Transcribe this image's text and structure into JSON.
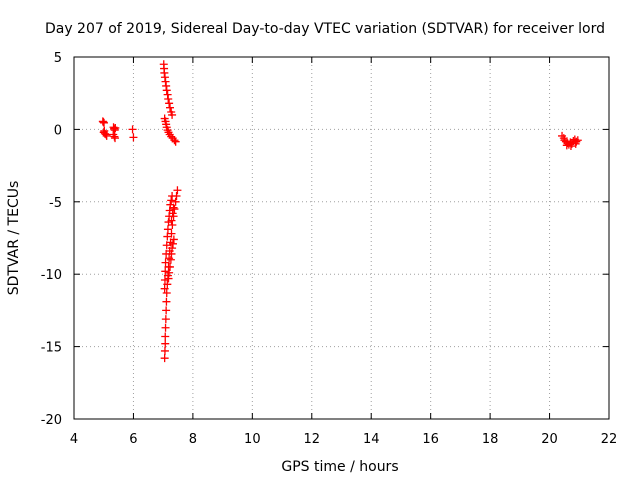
{
  "chart_data": {
    "type": "scatter",
    "title": "Day 207 of 2019, Sidereal Day-to-day VTEC variation (SDTVAR) for receiver lord",
    "xlabel": "GPS time / hours",
    "ylabel": "SDTVAR / TECUs",
    "xlim": [
      4,
      22
    ],
    "ylim": [
      -20,
      5
    ],
    "xticks": [
      4,
      6,
      8,
      10,
      12,
      14,
      16,
      18,
      20,
      22
    ],
    "yticks": [
      5,
      0,
      -5,
      -10,
      -15,
      -20
    ],
    "xtick_labels": [
      "4",
      "6",
      "8",
      "10",
      "12",
      "14",
      "16",
      "18",
      "20",
      "22"
    ],
    "ytick_labels": [
      "5",
      "0",
      "-5",
      "-10",
      "-15",
      "-20"
    ],
    "grid": true,
    "marker": "+",
    "marker_color": "#ff0000",
    "series": [
      {
        "name": "SDTVAR",
        "points": [
          [
            4.97,
            0.55
          ],
          [
            4.99,
            0.5
          ],
          [
            5.01,
            0.45
          ],
          [
            5.02,
            -0.1
          ],
          [
            5.0,
            -0.2
          ],
          [
            5.04,
            -0.3
          ],
          [
            5.08,
            -0.35
          ],
          [
            5.1,
            -0.45
          ],
          [
            5.33,
            0.15
          ],
          [
            5.35,
            0.05
          ],
          [
            5.37,
            -0.05
          ],
          [
            5.39,
            0.1
          ],
          [
            5.32,
            -0.35
          ],
          [
            5.36,
            -0.5
          ],
          [
            5.38,
            -0.6
          ],
          [
            5.97,
            0.0
          ],
          [
            6.0,
            -0.55
          ],
          [
            7.02,
            4.5
          ],
          [
            7.03,
            4.2
          ],
          [
            7.04,
            3.9
          ],
          [
            7.06,
            3.6
          ],
          [
            7.08,
            3.3
          ],
          [
            7.1,
            3.0
          ],
          [
            7.12,
            2.7
          ],
          [
            7.15,
            2.4
          ],
          [
            7.17,
            2.1
          ],
          [
            7.2,
            1.8
          ],
          [
            7.23,
            1.5
          ],
          [
            7.27,
            1.2
          ],
          [
            7.3,
            1.0
          ],
          [
            7.05,
            0.75
          ],
          [
            7.08,
            0.55
          ],
          [
            7.1,
            0.35
          ],
          [
            7.12,
            0.15
          ],
          [
            7.15,
            -0.05
          ],
          [
            7.18,
            -0.2
          ],
          [
            7.22,
            -0.35
          ],
          [
            7.27,
            -0.5
          ],
          [
            7.32,
            -0.6
          ],
          [
            7.38,
            -0.75
          ],
          [
            7.42,
            -0.85
          ],
          [
            7.05,
            -15.8
          ],
          [
            7.06,
            -15.3
          ],
          [
            7.07,
            -14.8
          ],
          [
            7.07,
            -14.3
          ],
          [
            7.08,
            -13.7
          ],
          [
            7.09,
            -13.1
          ],
          [
            7.1,
            -12.5
          ],
          [
            7.11,
            -11.9
          ],
          [
            7.12,
            -11.3
          ],
          [
            7.14,
            -10.7
          ],
          [
            7.16,
            -10.1
          ],
          [
            7.18,
            -9.5
          ],
          [
            7.2,
            -8.9
          ],
          [
            7.22,
            -8.4
          ],
          [
            7.25,
            -7.8
          ],
          [
            7.28,
            -7.2
          ],
          [
            7.31,
            -6.6
          ],
          [
            7.35,
            -6.0
          ],
          [
            7.38,
            -5.5
          ],
          [
            7.42,
            -5.0
          ],
          [
            7.45,
            -4.6
          ],
          [
            7.48,
            -4.2
          ],
          [
            7.05,
            -11.0
          ],
          [
            7.06,
            -10.4
          ],
          [
            7.07,
            -9.8
          ],
          [
            7.08,
            -9.2
          ],
          [
            7.1,
            -8.6
          ],
          [
            7.12,
            -8.0
          ],
          [
            7.14,
            -7.4
          ],
          [
            7.16,
            -6.9
          ],
          [
            7.18,
            -6.4
          ],
          [
            7.2,
            -6.0
          ],
          [
            7.22,
            -5.6
          ],
          [
            7.24,
            -5.2
          ],
          [
            7.27,
            -4.9
          ],
          [
            7.3,
            -4.6
          ],
          [
            7.18,
            -10.3
          ],
          [
            7.2,
            -9.9
          ],
          [
            7.23,
            -9.5
          ],
          [
            7.26,
            -9.0
          ],
          [
            7.28,
            -8.6
          ],
          [
            7.3,
            -8.2
          ],
          [
            7.33,
            -7.9
          ],
          [
            7.36,
            -7.6
          ],
          [
            7.28,
            -6.3
          ],
          [
            7.32,
            -5.8
          ],
          [
            7.35,
            -5.4
          ],
          [
            20.42,
            -0.45
          ],
          [
            20.48,
            -0.6
          ],
          [
            20.5,
            -0.75
          ],
          [
            20.55,
            -0.85
          ],
          [
            20.6,
            -0.95
          ],
          [
            20.65,
            -1.05
          ],
          [
            20.7,
            -0.9
          ],
          [
            20.75,
            -1.0
          ],
          [
            20.8,
            -0.8
          ],
          [
            20.85,
            -0.7
          ],
          [
            20.9,
            -0.85
          ],
          [
            20.95,
            -0.75
          ],
          [
            20.58,
            -1.1
          ],
          [
            20.72,
            -1.15
          ],
          [
            20.88,
            -1.0
          ]
        ]
      }
    ]
  }
}
